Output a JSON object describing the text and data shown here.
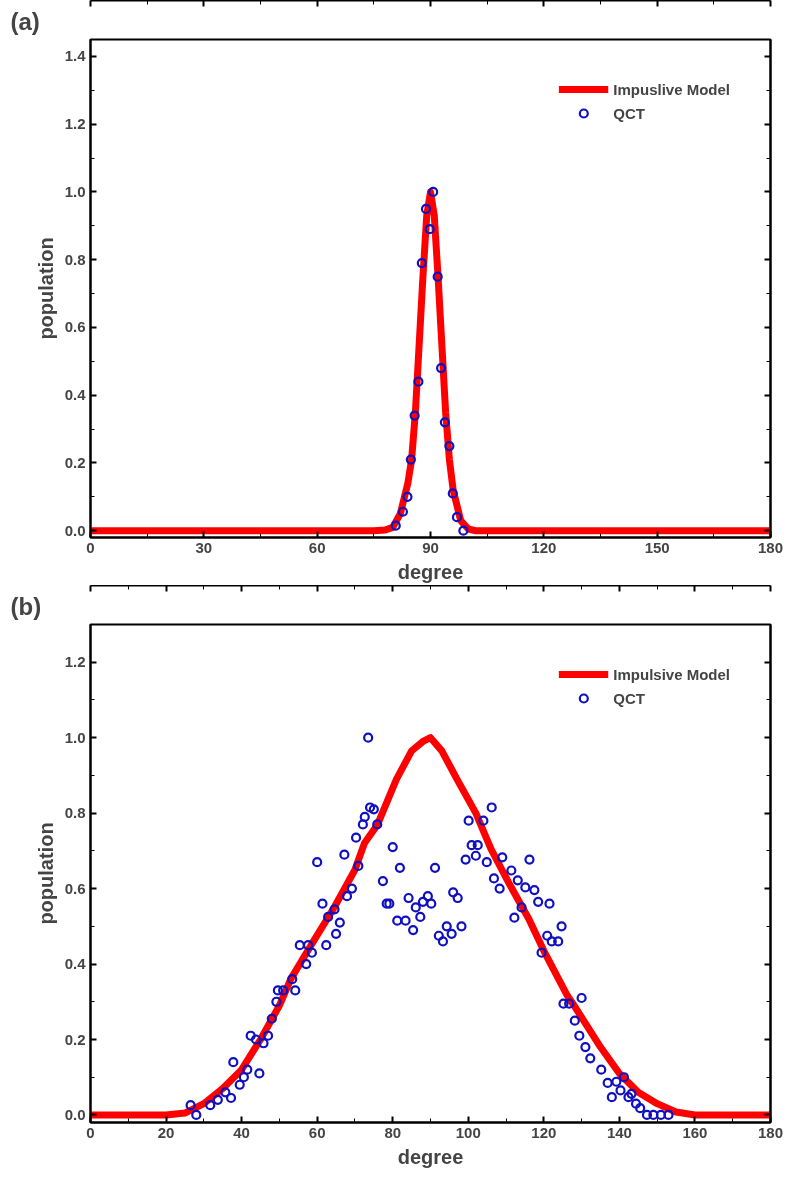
{
  "chart_data": [
    {
      "type": "line",
      "annotations": [
        "(a)"
      ],
      "xlabel": "degree",
      "ylabel": "population",
      "xlim": [
        0,
        180
      ],
      "ylim": [
        -0.02,
        1.45
      ],
      "xticks": [
        0,
        30,
        60,
        90,
        120,
        150,
        180
      ],
      "yticks": [
        {
          "value": 0,
          "label": "0.0"
        },
        {
          "value": 0.2,
          "label": "0.2"
        },
        {
          "value": 0.4,
          "label": "0.4"
        },
        {
          "value": 0.6,
          "label": "0.6"
        },
        {
          "value": 0.8,
          "label": "0.8"
        },
        {
          "value": 1.0,
          "label": "1.0"
        },
        {
          "value": 1.2,
          "label": "1.2"
        },
        {
          "value": 1.4,
          "label": "1.4"
        }
      ],
      "grid": false,
      "legend": "top right",
      "series": [
        {
          "name": "Impuslive Model",
          "color": "#ff0000",
          "line_style": "solid",
          "x": [
            0,
            75,
            78,
            80,
            82,
            84,
            85,
            86,
            87,
            88,
            89,
            90,
            91,
            92,
            93,
            94,
            95,
            96,
            98,
            100,
            102,
            180
          ],
          "values": [
            0,
            0,
            0.002,
            0.01,
            0.05,
            0.14,
            0.21,
            0.35,
            0.55,
            0.75,
            0.93,
            1.0,
            0.93,
            0.75,
            0.55,
            0.35,
            0.21,
            0.12,
            0.03,
            0.005,
            0,
            0
          ]
        },
        {
          "name": "QCT",
          "type": "scatter",
          "marker": "circle",
          "color": "#1010c0",
          "x": [
            80.8,
            82.7,
            83.9,
            84.8,
            85.8,
            86.8,
            87.7,
            88.8,
            89.8,
            90.7,
            91.9,
            92.8,
            93.8,
            95.0,
            95.9,
            97.0,
            98.7
          ],
          "values": [
            0.015,
            0.056,
            0.1,
            0.21,
            0.34,
            0.44,
            0.79,
            0.95,
            0.89,
            1.0,
            0.75,
            0.48,
            0.32,
            0.25,
            0.11,
            0.04,
            0.0
          ]
        }
      ]
    },
    {
      "type": "line",
      "annotations": [
        "(b)"
      ],
      "xlabel": "degree",
      "ylabel": "population",
      "xlim": [
        0,
        180
      ],
      "ylim": [
        -0.02,
        1.3
      ],
      "xticks": [
        0,
        20,
        40,
        60,
        80,
        100,
        120,
        140,
        160,
        180
      ],
      "yticks": [
        {
          "value": 0,
          "label": "0.0"
        },
        {
          "value": 0.2,
          "label": "0.2"
        },
        {
          "value": 0.4,
          "label": "0.4"
        },
        {
          "value": 0.6,
          "label": "0.6"
        },
        {
          "value": 0.8,
          "label": "0.8"
        },
        {
          "value": 1.0,
          "label": "1.0"
        },
        {
          "value": 1.2,
          "label": "1.2"
        }
      ],
      "grid": false,
      "legend": "top right",
      "series": [
        {
          "name": "Impulsive Model",
          "color": "#ff0000",
          "line_style": "solid",
          "x": [
            0,
            20,
            25,
            30,
            35,
            40,
            45,
            50,
            53,
            59,
            64.5,
            70,
            72.5,
            76,
            81,
            85,
            88,
            90,
            93,
            97,
            102,
            106,
            111,
            116,
            120,
            126,
            128,
            135,
            140,
            145,
            150,
            155,
            160,
            180
          ],
          "values": [
            0,
            0,
            0.005,
            0.03,
            0.07,
            0.12,
            0.2,
            0.29,
            0.36,
            0.46,
            0.55,
            0.65,
            0.72,
            0.77,
            0.89,
            0.965,
            0.99,
            1.0,
            0.965,
            0.89,
            0.8,
            0.705,
            0.61,
            0.52,
            0.435,
            0.32,
            0.29,
            0.18,
            0.11,
            0.06,
            0.03,
            0.008,
            0,
            0
          ]
        },
        {
          "name": "QCT",
          "type": "scatter",
          "marker": "circle",
          "color": "#1010c0",
          "x": [
            26.5,
            28,
            31.7,
            33.7,
            35.7,
            37.2,
            37.8,
            39.5,
            40.6,
            41.5,
            42.4,
            43.8,
            44.7,
            45.8,
            47,
            48,
            49.2,
            49.6,
            51,
            53.4,
            54.2,
            55.4,
            57.1,
            57.6,
            58.6,
            60.0,
            61.4,
            62.4,
            62.9,
            64.6,
            65.0,
            66.0,
            67.2,
            67.9,
            69.2,
            70.3,
            70.9,
            72.1,
            72.6,
            73.5,
            74.0,
            75.0,
            75.9,
            77.4,
            78.4,
            79.1,
            80.0,
            81.2,
            81.9,
            83.4,
            84.2,
            85.4,
            86.1,
            87.3,
            88.0,
            89.3,
            90.2,
            91.2,
            92.2,
            93.3,
            94.3,
            95.6,
            96.0,
            97.2,
            98.2,
            99.3,
            100.1,
            100.9,
            102.0,
            102.5,
            104.0,
            104.9,
            106.2,
            106.8,
            108.3,
            109.0,
            111.4,
            112.2,
            113.1,
            114.1,
            115.1,
            116.2,
            117.5,
            118.5,
            119.4,
            120.9,
            121.5,
            122.1,
            123.8,
            124.7,
            125.2,
            126.7,
            128.2,
            129.4,
            130.0,
            131,
            132.3,
            135.2,
            136.9,
            138,
            139.2,
            140.3,
            141.2,
            142.4,
            143.2,
            144.4,
            145.5,
            147.3,
            149,
            151,
            153
          ],
          "values": [
            0.026,
            0.0,
            0.026,
            0.04,
            0.06,
            0.045,
            0.14,
            0.08,
            0.1,
            0.12,
            0.21,
            0.2,
            0.11,
            0.19,
            0.21,
            0.255,
            0.3,
            0.33,
            0.33,
            0.36,
            0.33,
            0.45,
            0.4,
            0.45,
            0.43,
            0.67,
            0.56,
            0.45,
            0.525,
            0.545,
            0.48,
            0.51,
            0.69,
            0.58,
            0.6,
            0.735,
            0.66,
            0.77,
            0.79,
            1.0,
            0.815,
            0.81,
            0.77,
            0.62,
            0.56,
            0.56,
            0.71,
            0.515,
            0.655,
            0.515,
            0.575,
            0.49,
            0.55,
            0.525,
            0.565,
            0.58,
            0.56,
            0.655,
            0.475,
            0.46,
            0.5,
            0.48,
            0.59,
            0.575,
            0.5,
            0.677,
            0.78,
            0.715,
            0.687,
            0.715,
            0.78,
            0.67,
            0.815,
            0.627,
            0.6,
            0.683,
            0.648,
            0.523,
            0.622,
            0.55,
            0.603,
            0.677,
            0.596,
            0.565,
            0.43,
            0.475,
            0.56,
            0.46,
            0.46,
            0.5,
            0.295,
            0.295,
            0.25,
            0.21,
            0.31,
            0.18,
            0.15,
            0.12,
            0.085,
            0.047,
            0.088,
            0.065,
            0.1,
            0.047,
            0.056,
            0.03,
            0.018,
            0.0,
            0.0,
            0.0,
            0.0
          ]
        }
      ]
    }
  ]
}
